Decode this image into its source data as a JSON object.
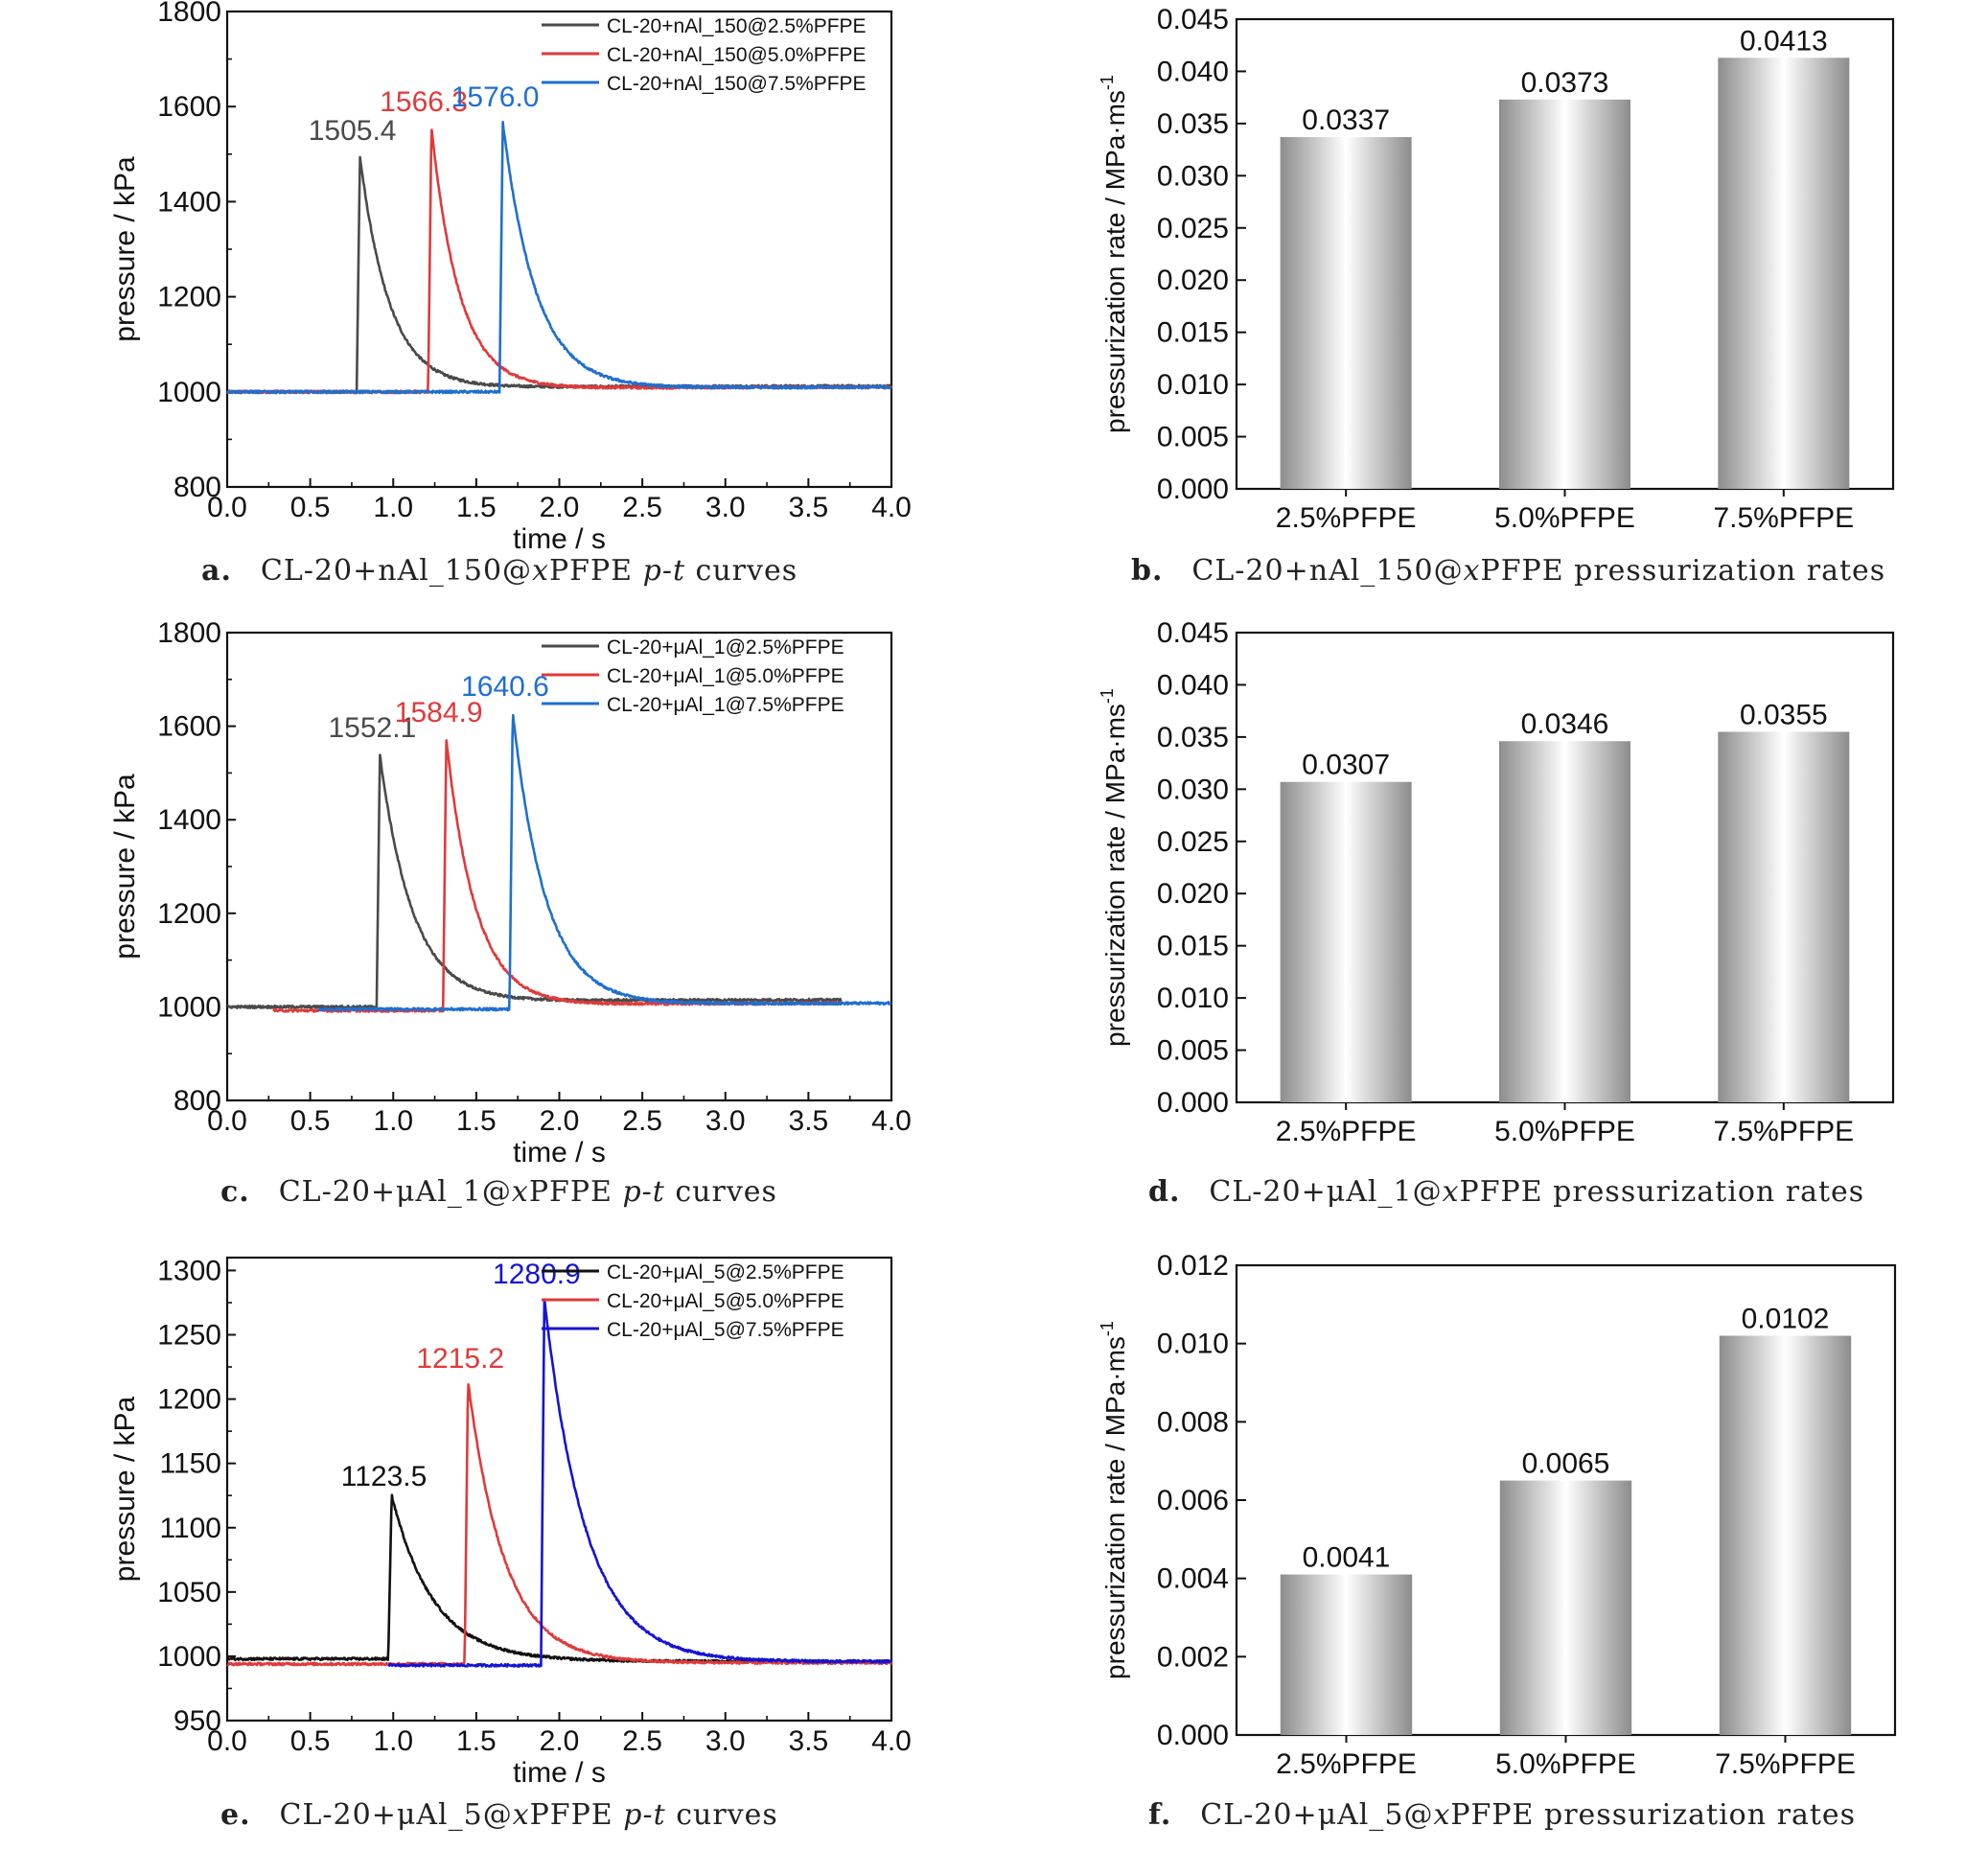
{
  "colors": {
    "black": "#4a4a4a",
    "black_e": "#111111",
    "red": "#e03a3a",
    "blue_ab": "#1f6fd0",
    "blue_e": "#1414d4"
  },
  "captions": [
    {
      "id": "a",
      "label": "a.",
      "pre": "CL-20+nAl_150@",
      "var": "x",
      "mid": "PFPE ",
      "it2": "p-t",
      "post": " curves"
    },
    {
      "id": "b",
      "label": "b.",
      "pre": "CL-20+nAl_150@",
      "var": "x",
      "mid": "PFPE pressurization rates",
      "it2": "",
      "post": ""
    },
    {
      "id": "c",
      "label": "c.",
      "pre": "CL-20+μAl_1@",
      "var": "x",
      "mid": "PFPE ",
      "it2": "p-t",
      "post": " curves"
    },
    {
      "id": "d",
      "label": "d.",
      "pre": "CL-20+μAl_1@",
      "var": "x",
      "mid": "PFPE pressurization rates",
      "it2": "",
      "post": ""
    },
    {
      "id": "e",
      "label": "e.",
      "pre": "CL-20+μAl_5@",
      "var": "x",
      "mid": "PFPE ",
      "it2": "p-t",
      "post": " curves"
    },
    {
      "id": "f",
      "label": "f.",
      "pre": "CL-20+μAl_5@",
      "var": "x",
      "mid": "PFPE pressurization rates",
      "it2": "",
      "post": ""
    }
  ],
  "chart_data": [
    {
      "id": "a",
      "type": "line",
      "xlabel": "time / s",
      "ylabel": "pressure / kPa",
      "xlim": [
        0,
        4
      ],
      "ylim": [
        800,
        1800
      ],
      "xticks": [
        0,
        0.5,
        1,
        1.5,
        2,
        2.5,
        3,
        3.5,
        4
      ],
      "xtick_labels": [
        "0.0",
        "0.5",
        "1.0",
        "1.5",
        "2.0",
        "2.5",
        "3.0",
        "3.5",
        "4.0"
      ],
      "yticks": [
        800,
        1000,
        1200,
        1400,
        1600,
        1800
      ],
      "ytick_labels": [
        "800",
        "1000",
        "1200",
        "1400",
        "1600",
        "1800"
      ],
      "legend_position": "top-right",
      "series": [
        {
          "name": "CL-20+nAl_150@2.5%PFPE",
          "color": "#4a4a4a",
          "baseline": 1000,
          "t_start": 0.0,
          "t_end": 4.0,
          "t_rise": 0.78,
          "peak_x": 0.8,
          "peak": 1505.4,
          "peak_label": "1505.4",
          "tau": 0.18,
          "tail": 1012,
          "tail_tau": 1.0
        },
        {
          "name": "CL-20+nAl_150@5.0%PFPE",
          "color": "#e03a3a",
          "baseline": 1000,
          "t_start": 0.0,
          "t_end": 4.0,
          "t_rise": 1.21,
          "peak_x": 1.23,
          "peak": 1566.3,
          "peak_label": "1566.3",
          "tau": 0.17,
          "tail": 1010,
          "tail_tau": 1.0
        },
        {
          "name": "CL-20+nAl_150@7.5%PFPE",
          "color": "#1f6fd0",
          "baseline": 1000,
          "t_start": 0.0,
          "t_end": 4.0,
          "t_rise": 1.64,
          "peak_x": 1.66,
          "peak": 1576.0,
          "peak_label": "1576.0",
          "tau": 0.2,
          "tail": 1010,
          "tail_tau": 1.0
        }
      ]
    },
    {
      "id": "b",
      "type": "bar",
      "ylabel": "pressurization rate / MPa·ms",
      "ylabel_sup": "-1",
      "categories": [
        "2.5%PFPE",
        "5.0%PFPE",
        "7.5%PFPE"
      ],
      "values": [
        0.0337,
        0.0373,
        0.0413
      ],
      "value_labels": [
        "0.0337",
        "0.0373",
        "0.0413"
      ],
      "ylim": [
        0,
        0.045
      ],
      "yticks": [
        0,
        0.005,
        0.01,
        0.015,
        0.02,
        0.025,
        0.03,
        0.035,
        0.04,
        0.045
      ],
      "ytick_labels": [
        "0.000",
        "0.005",
        "0.010",
        "0.015",
        "0.020",
        "0.025",
        "0.030",
        "0.035",
        "0.040",
        "0.045"
      ]
    },
    {
      "id": "c",
      "type": "line",
      "xlabel": "time / s",
      "ylabel": "pressure / kPa",
      "xlim": [
        0,
        4
      ],
      "ylim": [
        800,
        1800
      ],
      "xticks": [
        0,
        0.5,
        1,
        1.5,
        2,
        2.5,
        3,
        3.5,
        4
      ],
      "xtick_labels": [
        "0.0",
        "0.5",
        "1.0",
        "1.5",
        "2.0",
        "2.5",
        "3.0",
        "3.5",
        "4.0"
      ],
      "yticks": [
        800,
        1000,
        1200,
        1400,
        1600,
        1800
      ],
      "ytick_labels": [
        "800",
        "1000",
        "1200",
        "1400",
        "1600",
        "1800"
      ],
      "legend_position": "top-right",
      "series": [
        {
          "name": "CL-20+μAl_1@2.5%PFPE",
          "color": "#4a4a4a",
          "baseline": 1000,
          "t_start": 0.0,
          "t_end": 3.7,
          "t_rise": 0.9,
          "peak_x": 0.92,
          "peak": 1552.1,
          "peak_label": "1552.1",
          "tau": 0.2,
          "tail": 1015,
          "tail_tau": 1.0
        },
        {
          "name": "CL-20+μAl_1@5.0%PFPE",
          "color": "#e03a3a",
          "baseline": 992,
          "t_start": 0.28,
          "t_end": 3.7,
          "t_rise": 1.3,
          "peak_x": 1.32,
          "peak": 1584.9,
          "peak_label": "1584.9",
          "tau": 0.18,
          "tail": 1008,
          "tail_tau": 1.0
        },
        {
          "name": "CL-20+μAl_1@7.5%PFPE",
          "color": "#1f6fd0",
          "baseline": 995,
          "t_start": 0.55,
          "t_end": 4.0,
          "t_rise": 1.7,
          "peak_x": 1.72,
          "peak": 1640.6,
          "peak_label": "1640.6",
          "tau": 0.2,
          "tail": 1008,
          "tail_tau": 1.0
        }
      ]
    },
    {
      "id": "d",
      "type": "bar",
      "ylabel": "pressurization rate / MPa·ms",
      "ylabel_sup": "-1",
      "categories": [
        "2.5%PFPE",
        "5.0%PFPE",
        "7.5%PFPE"
      ],
      "values": [
        0.0307,
        0.0346,
        0.0355
      ],
      "value_labels": [
        "0.0307",
        "0.0346",
        "0.0355"
      ],
      "ylim": [
        0,
        0.045
      ],
      "yticks": [
        0,
        0.005,
        0.01,
        0.015,
        0.02,
        0.025,
        0.03,
        0.035,
        0.04,
        0.045
      ],
      "ytick_labels": [
        "0.000",
        "0.005",
        "0.010",
        "0.015",
        "0.020",
        "0.025",
        "0.030",
        "0.035",
        "0.040",
        "0.045"
      ]
    },
    {
      "id": "e",
      "type": "line",
      "xlabel": "time / s",
      "ylabel": "pressure / kPa",
      "xlim": [
        0,
        4
      ],
      "ylim": [
        950,
        1310
      ],
      "xticks": [
        0,
        0.5,
        1,
        1.5,
        2,
        2.5,
        3,
        3.5,
        4
      ],
      "xtick_labels": [
        "0.0",
        "0.5",
        "1.0",
        "1.5",
        "2.0",
        "2.5",
        "3.0",
        "3.5",
        "4.0"
      ],
      "yticks": [
        950,
        1000,
        1050,
        1100,
        1150,
        1200,
        1250,
        1300
      ],
      "ytick_labels": [
        "950",
        "1000",
        "1050",
        "1100",
        "1150",
        "1200",
        "1250",
        "1300"
      ],
      "legend_position": "top-right",
      "series": [
        {
          "name": "CL-20+μAl_5@2.5%PFPE",
          "color": "#111111",
          "baseline": 998,
          "t_start": 0.0,
          "t_end": 4.0,
          "t_rise": 0.97,
          "peak_x": 0.99,
          "peak": 1123.5,
          "peak_label": "1123.5",
          "tau": 0.25,
          "tail": 996,
          "tail_tau": 1.5
        },
        {
          "name": "CL-20+μAl_5@5.0%PFPE",
          "color": "#e03a3a",
          "baseline": 994,
          "t_start": 0.0,
          "t_end": 4.0,
          "t_rise": 1.43,
          "peak_x": 1.45,
          "peak": 1215.2,
          "peak_label": "1215.2",
          "tau": 0.22,
          "tail": 995,
          "tail_tau": 1.5
        },
        {
          "name": "CL-20+μAl_5@7.5%PFPE",
          "color": "#1414d4",
          "baseline": 993,
          "t_start": 0.97,
          "t_end": 4.0,
          "t_rise": 1.89,
          "peak_x": 1.91,
          "peak": 1280.9,
          "peak_label": "1280.9",
          "tau": 0.25,
          "tail": 996,
          "tail_tau": 1.5
        }
      ]
    },
    {
      "id": "f",
      "type": "bar",
      "ylabel": "pressurization rate / MPa·ms",
      "ylabel_sup": "-1",
      "categories": [
        "2.5%PFPE",
        "5.0%PFPE",
        "7.5%PFPE"
      ],
      "values": [
        0.0041,
        0.0065,
        0.0102
      ],
      "value_labels": [
        "0.0041",
        "0.0065",
        "0.0102"
      ],
      "ylim": [
        0,
        0.012
      ],
      "yticks": [
        0,
        0.002,
        0.004,
        0.006,
        0.008,
        0.01,
        0.012
      ],
      "ytick_labels": [
        "0.000",
        "0.002",
        "0.004",
        "0.006",
        "0.008",
        "0.010",
        "0.012"
      ]
    }
  ]
}
